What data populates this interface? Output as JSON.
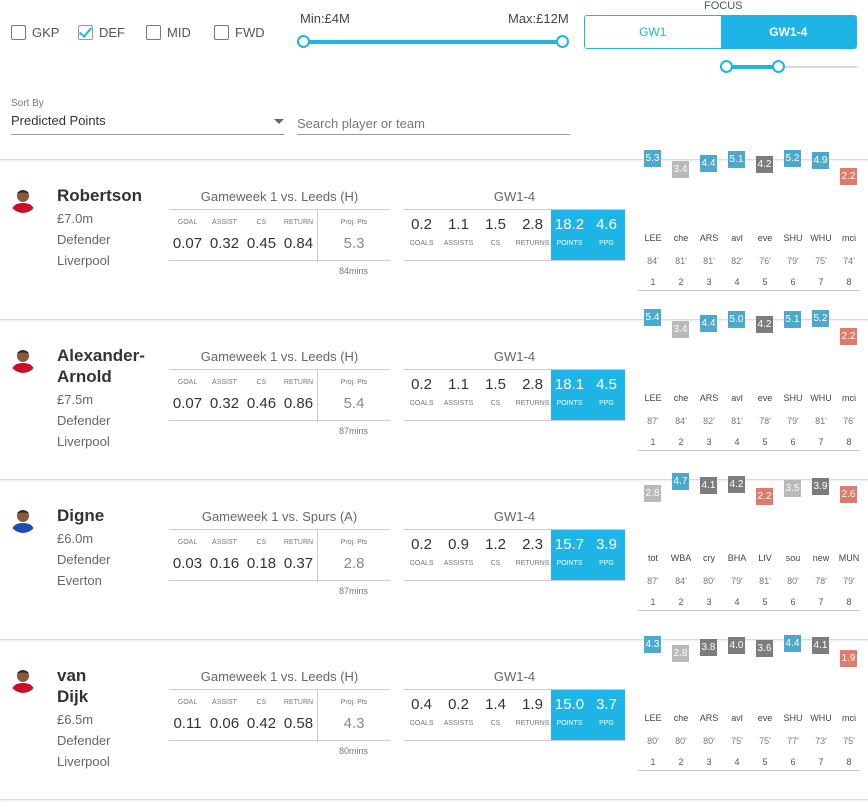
{
  "filters": {
    "positions": [
      {
        "label": "GKP",
        "checked": false
      },
      {
        "label": "DEF",
        "checked": true
      },
      {
        "label": "MID",
        "checked": false
      },
      {
        "label": "FWD",
        "checked": false
      }
    ],
    "price_min_label": "Min:£4M",
    "price_max_label": "Max:£12M",
    "focus_label": "FOCUS",
    "focus_options": [
      "GW1",
      "GW1-4"
    ],
    "focus_active": "GW1-4",
    "sort_label": "Sort By",
    "sort_value": "Predicted Points",
    "search_placeholder": "Search player or team"
  },
  "labels": {
    "gw_cols": [
      "GOAL",
      "ASSIST",
      "CS",
      "RETURN"
    ],
    "proj_label": "Proj. Pts",
    "range_title": "GW1-4",
    "range_cols": [
      "GOALS",
      "ASSISTS",
      "CS",
      "RETURNS",
      "POINTS",
      "PPG"
    ]
  },
  "colors": {
    "accent": "#1fb4e6",
    "fix_high": "#4aa9cc",
    "fix_mid": "#7c7c7c",
    "fix_low": "#b9b9b9",
    "fix_bad": "#e07a6a"
  },
  "players": [
    {
      "name_lines": [
        "Robertson"
      ],
      "price": "£7.0m",
      "position": "Defender",
      "team": "Liverpool",
      "kit": "#c8102e",
      "gw_title": "Gameweek 1 vs. Leeds (H)",
      "gw_values": [
        "0.07",
        "0.32",
        "0.45",
        "0.84"
      ],
      "proj": "5.3",
      "mins": "84mins",
      "range_values": [
        "0.2",
        "1.1",
        "1.5",
        "2.8",
        "18.2",
        "4.6"
      ],
      "fixtures": [
        {
          "pts": "5.3",
          "tier": "high",
          "opp": "LEE",
          "mins": "84'",
          "gw": "1",
          "level": 5.3
        },
        {
          "pts": "3.4",
          "tier": "low",
          "opp": "che",
          "mins": "81'",
          "gw": "2",
          "level": 3.4
        },
        {
          "pts": "4.4",
          "tier": "high",
          "opp": "ARS",
          "mins": "81'",
          "gw": "3",
          "level": 4.4
        },
        {
          "pts": "5.1",
          "tier": "high",
          "opp": "avl",
          "mins": "82'",
          "gw": "4",
          "level": 5.1
        },
        {
          "pts": "4.2",
          "tier": "mid",
          "opp": "eve",
          "mins": "76'",
          "gw": "5",
          "level": 4.2
        },
        {
          "pts": "5.2",
          "tier": "high",
          "opp": "SHU",
          "mins": "79'",
          "gw": "6",
          "level": 5.2
        },
        {
          "pts": "4.9",
          "tier": "high",
          "opp": "WHU",
          "mins": "75'",
          "gw": "7",
          "level": 4.9
        },
        {
          "pts": "2.2",
          "tier": "bad",
          "opp": "mci",
          "mins": "74'",
          "gw": "8",
          "level": 2.2
        }
      ]
    },
    {
      "name_lines": [
        "Alexander-",
        "Arnold"
      ],
      "price": "£7.5m",
      "position": "Defender",
      "team": "Liverpool",
      "kit": "#c8102e",
      "gw_title": "Gameweek 1 vs. Leeds (H)",
      "gw_values": [
        "0.07",
        "0.32",
        "0.46",
        "0.86"
      ],
      "proj": "5.4",
      "mins": "87mins",
      "range_values": [
        "0.2",
        "1.1",
        "1.5",
        "2.8",
        "18.1",
        "4.5"
      ],
      "fixtures": [
        {
          "pts": "5.4",
          "tier": "high",
          "opp": "LEE",
          "mins": "87'",
          "gw": "1",
          "level": 5.4
        },
        {
          "pts": "3.4",
          "tier": "low",
          "opp": "che",
          "mins": "84'",
          "gw": "2",
          "level": 3.4
        },
        {
          "pts": "4.4",
          "tier": "high",
          "opp": "ARS",
          "mins": "82'",
          "gw": "3",
          "level": 4.4
        },
        {
          "pts": "5.0",
          "tier": "high",
          "opp": "avl",
          "mins": "81'",
          "gw": "4",
          "level": 5.0
        },
        {
          "pts": "4.2",
          "tier": "mid",
          "opp": "eve",
          "mins": "78'",
          "gw": "5",
          "level": 4.2
        },
        {
          "pts": "5.1",
          "tier": "high",
          "opp": "SHU",
          "mins": "79'",
          "gw": "6",
          "level": 5.1
        },
        {
          "pts": "5.2",
          "tier": "high",
          "opp": "WHU",
          "mins": "81'",
          "gw": "7",
          "level": 5.2
        },
        {
          "pts": "2.2",
          "tier": "bad",
          "opp": "mci",
          "mins": "76'",
          "gw": "8",
          "level": 2.2
        }
      ]
    },
    {
      "name_lines": [
        "Digne"
      ],
      "price": "£6.0m",
      "position": "Defender",
      "team": "Everton",
      "kit": "#1f4db3",
      "gw_title": "Gameweek 1 vs. Spurs (A)",
      "gw_values": [
        "0.03",
        "0.16",
        "0.18",
        "0.37"
      ],
      "proj": "2.8",
      "mins": "87mins",
      "range_values": [
        "0.2",
        "0.9",
        "1.2",
        "2.3",
        "15.7",
        "3.9"
      ],
      "fixtures": [
        {
          "pts": "2.8",
          "tier": "low",
          "opp": "tot",
          "mins": "87'",
          "gw": "1",
          "level": 2.8
        },
        {
          "pts": "4.7",
          "tier": "high",
          "opp": "WBA",
          "mins": "84'",
          "gw": "2",
          "level": 4.7
        },
        {
          "pts": "4.1",
          "tier": "mid",
          "opp": "cry",
          "mins": "80'",
          "gw": "3",
          "level": 4.1
        },
        {
          "pts": "4.2",
          "tier": "mid",
          "opp": "BHA",
          "mins": "79'",
          "gw": "4",
          "level": 4.2
        },
        {
          "pts": "2.2",
          "tier": "bad",
          "opp": "LIV",
          "mins": "81'",
          "gw": "5",
          "level": 2.2
        },
        {
          "pts": "3.5",
          "tier": "low",
          "opp": "sou",
          "mins": "80'",
          "gw": "6",
          "level": 3.5
        },
        {
          "pts": "3.9",
          "tier": "mid",
          "opp": "new",
          "mins": "78'",
          "gw": "7",
          "level": 3.9
        },
        {
          "pts": "2.6",
          "tier": "bad",
          "opp": "MUN",
          "mins": "79'",
          "gw": "8",
          "level": 2.6
        }
      ]
    },
    {
      "name_lines": [
        "van",
        "Dijk"
      ],
      "price": "£6.5m",
      "position": "Defender",
      "team": "Liverpool",
      "kit": "#c8102e",
      "gw_title": "Gameweek 1 vs. Leeds (H)",
      "gw_values": [
        "0.11",
        "0.06",
        "0.42",
        "0.58"
      ],
      "proj": "4.3",
      "mins": "80mins",
      "range_values": [
        "0.4",
        "0.2",
        "1.4",
        "1.9",
        "15.0",
        "3.7"
      ],
      "fixtures": [
        {
          "pts": "4.3",
          "tier": "high",
          "opp": "LEE",
          "mins": "80'",
          "gw": "1",
          "level": 4.3
        },
        {
          "pts": "2.8",
          "tier": "low",
          "opp": "che",
          "mins": "80'",
          "gw": "2",
          "level": 2.8
        },
        {
          "pts": "3.8",
          "tier": "mid",
          "opp": "ARS",
          "mins": "80'",
          "gw": "3",
          "level": 3.8
        },
        {
          "pts": "4.0",
          "tier": "mid",
          "opp": "avl",
          "mins": "75'",
          "gw": "4",
          "level": 4.0
        },
        {
          "pts": "3.6",
          "tier": "mid",
          "opp": "eve",
          "mins": "75'",
          "gw": "5",
          "level": 3.6
        },
        {
          "pts": "4.4",
          "tier": "high",
          "opp": "SHU",
          "mins": "77'",
          "gw": "6",
          "level": 4.4
        },
        {
          "pts": "4.1",
          "tier": "mid",
          "opp": "WHU",
          "mins": "73'",
          "gw": "7",
          "level": 4.1
        },
        {
          "pts": "1.9",
          "tier": "bad",
          "opp": "mci",
          "mins": "75'",
          "gw": "8",
          "level": 1.9
        }
      ]
    }
  ]
}
